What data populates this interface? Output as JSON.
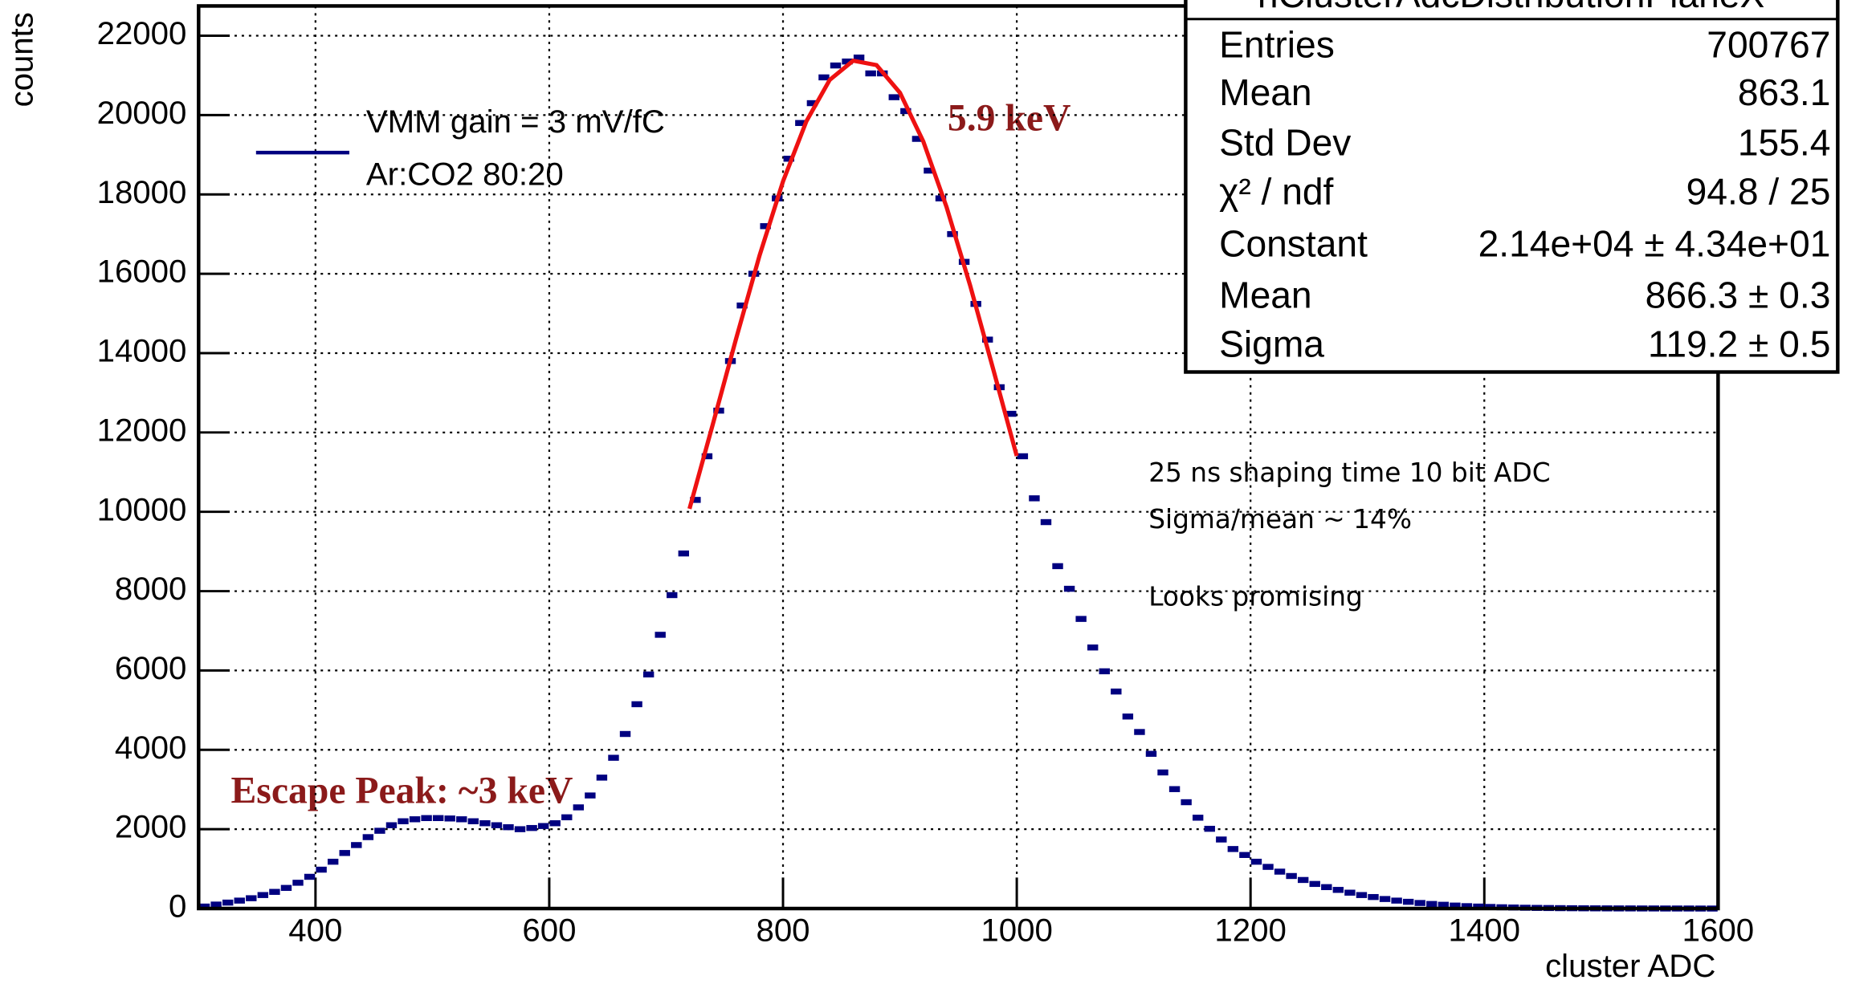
{
  "chart_data": {
    "type": "histogram",
    "title": "hClusterAdcDistributionPlaneX",
    "x_label": "cluster ADC",
    "y_label": "counts",
    "xlim": [
      300,
      1600
    ],
    "xticks": [
      400,
      600,
      800,
      1000,
      1200,
      1400,
      1600
    ],
    "ylim": [
      0,
      22750
    ],
    "yticks": [
      0,
      2000,
      4000,
      6000,
      8000,
      10000,
      12000,
      14000,
      16000,
      18000,
      20000,
      22000
    ],
    "grid": true,
    "series": [
      {
        "name": "VMM gain = 3 mV/fC",
        "color": "#000080",
        "x": [
          305,
          315,
          325,
          335,
          345,
          355,
          365,
          375,
          385,
          395,
          405,
          415,
          425,
          435,
          445,
          455,
          465,
          475,
          485,
          495,
          505,
          515,
          525,
          535,
          545,
          555,
          565,
          575,
          585,
          595,
          605,
          615,
          625,
          635,
          645,
          655,
          665,
          675,
          685,
          695,
          705,
          715,
          725,
          735,
          745,
          755,
          765,
          775,
          785,
          795,
          805,
          815,
          825,
          835,
          845,
          855,
          865,
          875,
          885,
          895,
          905,
          915,
          925,
          935,
          945,
          955,
          965,
          975,
          985,
          995,
          1005,
          1015,
          1025,
          1035,
          1045,
          1055,
          1065,
          1075,
          1085,
          1095,
          1105,
          1115,
          1125,
          1135,
          1145,
          1155,
          1165,
          1175,
          1185,
          1195,
          1205,
          1215,
          1225,
          1235,
          1245,
          1255,
          1265,
          1275,
          1285,
          1295,
          1305,
          1315,
          1325,
          1335,
          1345,
          1355,
          1365,
          1375,
          1385,
          1395,
          1405,
          1415,
          1425,
          1435,
          1445,
          1455,
          1465,
          1475,
          1485,
          1495,
          1505,
          1515,
          1525,
          1535,
          1545,
          1555,
          1565,
          1575,
          1585,
          1595
        ],
        "values": [
          50,
          100,
          150,
          200,
          260,
          340,
          420,
          520,
          650,
          800,
          980,
          1180,
          1400,
          1600,
          1800,
          1960,
          2100,
          2200,
          2250,
          2280,
          2280,
          2270,
          2250,
          2200,
          2150,
          2100,
          2050,
          2000,
          2030,
          2080,
          2150,
          2300,
          2550,
          2850,
          3300,
          3800,
          4400,
          5150,
          5900,
          6900,
          7900,
          8950,
          10300,
          11400,
          12550,
          13800,
          15200,
          16000,
          17200,
          17900,
          18900,
          19800,
          20300,
          20950,
          21250,
          21350,
          21450,
          21050,
          21050,
          20450,
          20100,
          19400,
          18600,
          17900,
          17000,
          16300,
          15240,
          14340,
          13140,
          12470,
          11400,
          10340,
          9740,
          8630,
          8060,
          7300,
          6580,
          5980,
          5470,
          4840,
          4450,
          3900,
          3430,
          3010,
          2680,
          2290,
          2010,
          1740,
          1500,
          1350,
          1180,
          1050,
          930,
          820,
          720,
          620,
          540,
          470,
          400,
          340,
          290,
          240,
          200,
          170,
          140,
          115,
          95,
          75,
          60,
          50,
          40,
          32,
          26,
          20,
          16,
          13,
          10,
          8,
          6,
          5,
          4,
          3,
          3,
          2,
          2,
          1,
          1,
          1,
          0,
          0
        ]
      },
      {
        "name": "Ar:CO2 80:20",
        "color": "#ee1111",
        "x": [
          720,
          740,
          760,
          780,
          800,
          820,
          840,
          860,
          880,
          900,
          920,
          940,
          960,
          980,
          1000
        ],
        "values": [
          10078,
          12207,
          14379,
          16465,
          18333,
          19844,
          20887,
          21370,
          21259,
          20561,
          19335,
          17677,
          15712,
          13578,
          11408
        ]
      }
    ],
    "stats": [
      [
        "Entries",
        "700767"
      ],
      [
        "Mean",
        "863.1"
      ],
      [
        "Std Dev",
        "155.4"
      ],
      [
        "χ² / ndf",
        "94.8 / 25"
      ],
      [
        "Constant",
        "2.14e+04 ± 4.34e+01"
      ],
      [
        "Mean",
        "866.3 ± 0.3"
      ],
      [
        "Sigma",
        "119.2 ± 0.5"
      ]
    ],
    "annotations": {
      "peak": "5.9 keV",
      "escape": "Escape Peak: ~3 keV",
      "notes": [
        "25 ns shaping time 10 bit ADC",
        "Sigma/mean ~ 14%",
        "Looks promising"
      ]
    }
  }
}
